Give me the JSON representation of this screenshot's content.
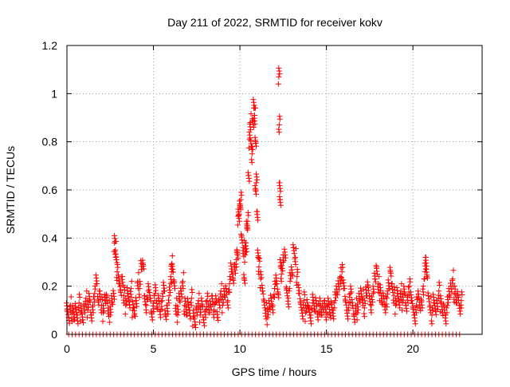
{
  "chart_data": {
    "type": "scatter",
    "title": "Day 211 of 2022, SRMTID for receiver kokv",
    "xlabel": "GPS time / hours",
    "ylabel": "SRMTID / TECUs",
    "xlim": [
      0,
      24
    ],
    "ylim": [
      0,
      1.2
    ],
    "xticks": [
      0,
      5,
      10,
      15,
      20
    ],
    "xtick_labels": [
      "0",
      "5",
      "10",
      "15",
      "20"
    ],
    "yticks": [
      0,
      0.2,
      0.4,
      0.6,
      0.8,
      1,
      1.2
    ],
    "ytick_labels": [
      "0",
      "0.2",
      "0.4",
      "0.6",
      "0.8",
      "1",
      "1.2"
    ],
    "grid": true,
    "marker": "plus",
    "series": [
      {
        "name": "SRMTID",
        "color": "#ff0000",
        "points": [
          [
            0.0,
            0.1
          ],
          [
            0.1,
            0.07
          ],
          [
            0.2,
            0.12
          ],
          [
            0.3,
            0.09
          ],
          [
            0.4,
            0.06
          ],
          [
            0.5,
            0.11
          ],
          [
            0.6,
            0.08
          ],
          [
            0.7,
            0.13
          ],
          [
            0.8,
            0.09
          ],
          [
            0.9,
            0.06
          ],
          [
            1.0,
            0.12
          ],
          [
            1.1,
            0.15
          ],
          [
            1.2,
            0.1
          ],
          [
            1.3,
            0.14
          ],
          [
            1.4,
            0.08
          ],
          [
            1.5,
            0.12
          ],
          [
            1.6,
            0.17
          ],
          [
            1.7,
            0.21
          ],
          [
            1.8,
            0.14
          ],
          [
            1.9,
            0.18
          ],
          [
            2.0,
            0.12
          ],
          [
            2.1,
            0.09
          ],
          [
            2.2,
            0.14
          ],
          [
            2.3,
            0.16
          ],
          [
            2.4,
            0.11
          ],
          [
            2.5,
            0.08
          ],
          [
            2.6,
            0.13
          ],
          [
            2.7,
            0.17
          ],
          [
            2.75,
            0.38
          ],
          [
            2.8,
            0.35
          ],
          [
            2.85,
            0.31
          ],
          [
            2.9,
            0.26
          ],
          [
            3.0,
            0.21
          ],
          [
            3.1,
            0.18
          ],
          [
            3.2,
            0.24
          ],
          [
            3.3,
            0.16
          ],
          [
            3.4,
            0.12
          ],
          [
            3.5,
            0.17
          ],
          [
            3.6,
            0.14
          ],
          [
            3.7,
            0.19
          ],
          [
            3.8,
            0.1
          ],
          [
            3.9,
            0.08
          ],
          [
            4.0,
            0.14
          ],
          [
            4.1,
            0.22
          ],
          [
            4.2,
            0.19
          ],
          [
            4.3,
            0.27
          ],
          [
            4.4,
            0.29
          ],
          [
            4.5,
            0.16
          ],
          [
            4.6,
            0.12
          ],
          [
            4.7,
            0.18
          ],
          [
            4.8,
            0.15
          ],
          [
            4.9,
            0.09
          ],
          [
            5.0,
            0.13
          ],
          [
            5.1,
            0.17
          ],
          [
            5.2,
            0.11
          ],
          [
            5.3,
            0.15
          ],
          [
            5.4,
            0.1
          ],
          [
            5.5,
            0.14
          ],
          [
            5.6,
            0.18
          ],
          [
            5.7,
            0.08
          ],
          [
            5.8,
            0.12
          ],
          [
            5.9,
            0.16
          ],
          [
            6.0,
            0.21
          ],
          [
            6.05,
            0.29
          ],
          [
            6.1,
            0.27
          ],
          [
            6.2,
            0.22
          ],
          [
            6.3,
            0.12
          ],
          [
            6.4,
            0.08
          ],
          [
            6.5,
            0.14
          ],
          [
            6.6,
            0.18
          ],
          [
            6.7,
            0.22
          ],
          [
            6.8,
            0.12
          ],
          [
            6.9,
            0.08
          ],
          [
            7.0,
            0.13
          ],
          [
            7.1,
            0.1
          ],
          [
            7.2,
            0.15
          ],
          [
            7.3,
            0.07
          ],
          [
            7.4,
            0.04
          ],
          [
            7.5,
            0.11
          ],
          [
            7.6,
            0.14
          ],
          [
            7.7,
            0.08
          ],
          [
            7.8,
            0.12
          ],
          [
            7.9,
            0.06
          ],
          [
            8.0,
            0.1
          ],
          [
            8.1,
            0.14
          ],
          [
            8.2,
            0.09
          ],
          [
            8.3,
            0.12
          ],
          [
            8.4,
            0.16
          ],
          [
            8.5,
            0.1
          ],
          [
            8.6,
            0.13
          ],
          [
            8.7,
            0.07
          ],
          [
            8.8,
            0.14
          ],
          [
            8.9,
            0.18
          ],
          [
            9.0,
            0.12
          ],
          [
            9.1,
            0.16
          ],
          [
            9.2,
            0.19
          ],
          [
            9.3,
            0.14
          ],
          [
            9.4,
            0.21
          ],
          [
            9.5,
            0.26
          ],
          [
            9.6,
            0.23
          ],
          [
            9.7,
            0.29
          ],
          [
            9.8,
            0.31
          ],
          [
            9.85,
            0.34
          ],
          [
            9.9,
            0.49
          ],
          [
            9.95,
            0.5
          ],
          [
            10.0,
            0.53
          ],
          [
            10.05,
            0.56
          ],
          [
            10.1,
            0.41
          ],
          [
            10.2,
            0.36
          ],
          [
            10.25,
            0.23
          ],
          [
            10.3,
            0.33
          ],
          [
            10.35,
            0.38
          ],
          [
            10.4,
            0.44
          ],
          [
            10.45,
            0.47
          ],
          [
            10.5,
            0.66
          ],
          [
            10.55,
            0.81
          ],
          [
            10.6,
            0.88
          ],
          [
            10.65,
            0.78
          ],
          [
            10.7,
            0.75
          ],
          [
            10.75,
            0.89
          ],
          [
            10.8,
            0.94
          ],
          [
            10.85,
            0.91
          ],
          [
            10.9,
            0.6
          ],
          [
            10.9,
            0.8
          ],
          [
            10.95,
            0.63
          ],
          [
            11.0,
            0.51
          ],
          [
            11.05,
            0.32
          ],
          [
            11.1,
            0.28
          ],
          [
            11.2,
            0.23
          ],
          [
            11.3,
            0.18
          ],
          [
            11.4,
            0.14
          ],
          [
            11.5,
            0.1
          ],
          [
            11.6,
            0.07
          ],
          [
            11.7,
            0.11
          ],
          [
            11.8,
            0.15
          ],
          [
            11.9,
            0.12
          ],
          [
            12.0,
            0.19
          ],
          [
            12.1,
            0.21
          ],
          [
            12.2,
            0.17
          ],
          [
            12.25,
            1.07
          ],
          [
            12.27,
            0.87
          ],
          [
            12.3,
            0.63
          ],
          [
            12.32,
            0.56
          ],
          [
            12.35,
            0.28
          ],
          [
            12.4,
            0.25
          ],
          [
            12.5,
            0.3
          ],
          [
            12.6,
            0.33
          ],
          [
            12.7,
            0.19
          ],
          [
            12.8,
            0.15
          ],
          [
            12.9,
            0.22
          ],
          [
            13.0,
            0.25
          ],
          [
            13.1,
            0.36
          ],
          [
            13.2,
            0.32
          ],
          [
            13.3,
            0.24
          ],
          [
            13.4,
            0.17
          ],
          [
            13.5,
            0.13
          ],
          [
            13.6,
            0.1
          ],
          [
            13.7,
            0.14
          ],
          [
            13.8,
            0.09
          ],
          [
            13.9,
            0.12
          ],
          [
            14.0,
            0.11
          ],
          [
            14.1,
            0.08
          ],
          [
            14.2,
            0.13
          ],
          [
            14.3,
            0.1
          ],
          [
            14.4,
            0.14
          ],
          [
            14.5,
            0.09
          ],
          [
            14.6,
            0.12
          ],
          [
            14.7,
            0.08
          ],
          [
            14.8,
            0.11
          ],
          [
            14.9,
            0.14
          ],
          [
            15.0,
            0.09
          ],
          [
            15.1,
            0.12
          ],
          [
            15.2,
            0.08
          ],
          [
            15.3,
            0.13
          ],
          [
            15.4,
            0.1
          ],
          [
            15.5,
            0.14
          ],
          [
            15.6,
            0.17
          ],
          [
            15.7,
            0.21
          ],
          [
            15.8,
            0.24
          ],
          [
            15.9,
            0.26
          ],
          [
            16.0,
            0.19
          ],
          [
            16.1,
            0.14
          ],
          [
            16.2,
            0.1
          ],
          [
            16.3,
            0.13
          ],
          [
            16.4,
            0.17
          ],
          [
            16.5,
            0.12
          ],
          [
            16.6,
            0.08
          ],
          [
            16.7,
            0.12
          ],
          [
            16.8,
            0.09
          ],
          [
            16.9,
            0.14
          ],
          [
            17.0,
            0.18
          ],
          [
            17.1,
            0.15
          ],
          [
            17.2,
            0.11
          ],
          [
            17.3,
            0.16
          ],
          [
            17.4,
            0.2
          ],
          [
            17.5,
            0.16
          ],
          [
            17.6,
            0.12
          ],
          [
            17.7,
            0.17
          ],
          [
            17.8,
            0.23
          ],
          [
            17.9,
            0.28
          ],
          [
            18.0,
            0.21
          ],
          [
            18.1,
            0.17
          ],
          [
            18.2,
            0.13
          ],
          [
            18.3,
            0.16
          ],
          [
            18.4,
            0.12
          ],
          [
            18.5,
            0.15
          ],
          [
            18.6,
            0.19
          ],
          [
            18.7,
            0.26
          ],
          [
            18.8,
            0.21
          ],
          [
            18.9,
            0.16
          ],
          [
            19.0,
            0.12
          ],
          [
            19.1,
            0.17
          ],
          [
            19.2,
            0.14
          ],
          [
            19.3,
            0.18
          ],
          [
            19.4,
            0.13
          ],
          [
            19.5,
            0.17
          ],
          [
            19.6,
            0.12
          ],
          [
            19.7,
            0.16
          ],
          [
            19.8,
            0.2
          ],
          [
            19.9,
            0.14
          ],
          [
            20.0,
            0.11
          ],
          [
            20.1,
            0.08
          ],
          [
            20.2,
            0.12
          ],
          [
            20.3,
            0.15
          ],
          [
            20.4,
            0.11
          ],
          [
            20.5,
            0.14
          ],
          [
            20.6,
            0.2
          ],
          [
            20.7,
            0.26
          ],
          [
            20.75,
            0.32
          ],
          [
            20.8,
            0.24
          ],
          [
            20.9,
            0.16
          ],
          [
            21.0,
            0.12
          ],
          [
            21.1,
            0.08
          ],
          [
            21.2,
            0.13
          ],
          [
            21.3,
            0.1
          ],
          [
            21.4,
            0.14
          ],
          [
            21.5,
            0.18
          ],
          [
            21.6,
            0.13
          ],
          [
            21.7,
            0.09
          ],
          [
            21.8,
            0.12
          ],
          [
            21.9,
            0.08
          ],
          [
            22.0,
            0.12
          ],
          [
            22.1,
            0.16
          ],
          [
            22.2,
            0.2
          ],
          [
            22.3,
            0.23
          ],
          [
            22.4,
            0.17
          ],
          [
            22.5,
            0.13
          ],
          [
            22.6,
            0.16
          ],
          [
            22.7,
            0.12
          ],
          [
            22.8,
            0.14
          ]
        ],
        "zero_points_x": [
          0.1,
          0.3,
          0.5,
          0.7,
          0.9,
          1.1,
          1.3,
          1.5,
          1.7,
          1.9,
          2.1,
          2.3,
          2.5,
          2.7,
          2.9,
          3.1,
          3.3,
          3.5,
          3.7,
          3.9,
          4.1,
          4.3,
          4.5,
          4.7,
          4.9,
          5.1,
          5.3,
          5.5,
          5.7,
          5.9,
          6.1,
          6.3,
          6.5,
          6.7,
          6.9,
          7.1,
          7.3,
          7.5,
          7.7,
          7.9,
          8.1,
          8.3,
          8.5,
          8.7,
          8.9,
          9.1,
          9.3,
          9.5,
          9.7,
          9.9,
          10.1,
          10.3,
          10.5,
          10.7,
          10.9,
          11.1,
          11.3,
          11.5,
          11.7,
          11.9,
          12.1,
          12.3,
          12.5,
          12.7,
          12.9,
          13.1,
          13.3,
          13.5,
          13.7,
          13.9,
          14.1,
          14.3,
          14.5,
          14.7,
          14.9,
          15.1,
          15.3,
          15.5,
          15.7,
          15.9,
          16.1,
          16.3,
          16.5,
          16.7,
          16.9,
          17.1,
          17.3,
          17.5,
          17.7,
          17.9,
          18.1,
          18.3,
          18.5,
          18.7,
          18.9,
          19.1,
          19.3,
          19.5,
          19.7,
          19.9,
          20.1,
          20.3,
          20.5,
          20.7,
          20.9,
          21.1,
          21.3,
          21.5,
          21.7,
          21.9,
          22.1,
          22.3,
          22.5,
          22.7
        ]
      }
    ]
  }
}
